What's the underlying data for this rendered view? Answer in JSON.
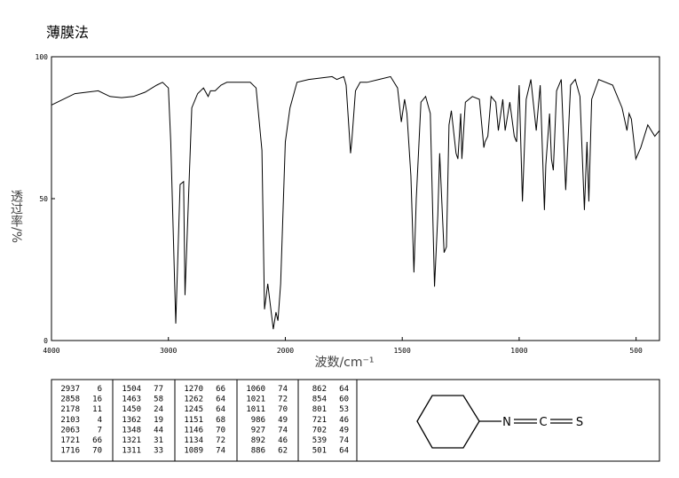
{
  "chart_data": {
    "type": "line",
    "title": "薄膜法",
    "x_label": "波数/cm⁻¹",
    "y_label": "透过率/%",
    "xlim": [
      4000,
      400
    ],
    "xticks": [
      4000,
      3000,
      2000,
      1500,
      1000,
      500
    ],
    "ylim": [
      0,
      100
    ],
    "yticks": [
      0,
      50,
      100
    ],
    "color": "#000000",
    "x": [
      4000,
      3800,
      3600,
      3500,
      3400,
      3300,
      3200,
      3100,
      3050,
      3000,
      2980,
      2937,
      2900,
      2870,
      2858,
      2800,
      2750,
      2700,
      2660,
      2640,
      2600,
      2550,
      2500,
      2400,
      2300,
      2250,
      2200,
      2178,
      2150,
      2103,
      2080,
      2063,
      2040,
      2000,
      1980,
      1950,
      1900,
      1850,
      1800,
      1780,
      1750,
      1740,
      1721,
      1716,
      1700,
      1680,
      1650,
      1600,
      1550,
      1520,
      1504,
      1490,
      1480,
      1463,
      1450,
      1440,
      1420,
      1400,
      1380,
      1362,
      1348,
      1340,
      1321,
      1311,
      1300,
      1290,
      1270,
      1262,
      1250,
      1245,
      1230,
      1200,
      1170,
      1151,
      1146,
      1134,
      1120,
      1100,
      1089,
      1070,
      1060,
      1040,
      1021,
      1011,
      1000,
      986,
      970,
      950,
      927,
      910,
      892,
      886,
      870,
      862,
      854,
      840,
      820,
      801,
      780,
      760,
      740,
      721,
      710,
      702,
      690,
      660,
      600,
      560,
      539,
      530,
      520,
      501,
      480,
      450,
      420,
      400
    ],
    "values": [
      83,
      87,
      88,
      86,
      85.6,
      86,
      87.5,
      90,
      91,
      89,
      70,
      6,
      55,
      56,
      16,
      82,
      87,
      89,
      86,
      88,
      88,
      90,
      91,
      91,
      91,
      89,
      67,
      11,
      20,
      4,
      10,
      7,
      20,
      70,
      82,
      91,
      92,
      92.5,
      93,
      92,
      93,
      90,
      66,
      70,
      88,
      91,
      91,
      92,
      93,
      89,
      77,
      85,
      80,
      58,
      24,
      50,
      84,
      86,
      80,
      19,
      44,
      66,
      31,
      33,
      76,
      81,
      66,
      64,
      80,
      64,
      84,
      86,
      85,
      68,
      70,
      72,
      86,
      84,
      74,
      85,
      74,
      84,
      72,
      70,
      90,
      49,
      85,
      92,
      74,
      90,
      46,
      62,
      80,
      64,
      60,
      88,
      92,
      53,
      90,
      92,
      86,
      46,
      70,
      49,
      85,
      92,
      90,
      82,
      74,
      80,
      78,
      64,
      68,
      76,
      72,
      74
    ]
  },
  "peak_table": {
    "columns": [
      {
        "wavenumbers": [
          2937,
          2858,
          2178,
          2103,
          2063,
          1721,
          1716
        ],
        "transmittance": [
          6,
          16,
          11,
          4,
          7,
          66,
          70
        ]
      },
      {
        "wavenumbers": [
          1504,
          1463,
          1450,
          1362,
          1348,
          1321,
          1311
        ],
        "transmittance": [
          77,
          58,
          24,
          19,
          44,
          31,
          33
        ]
      },
      {
        "wavenumbers": [
          1270,
          1262,
          1245,
          1151,
          1146,
          1134,
          1089
        ],
        "transmittance": [
          66,
          64,
          64,
          68,
          70,
          72,
          74
        ]
      },
      {
        "wavenumbers": [
          1060,
          1021,
          1011,
          986,
          927,
          892,
          886
        ],
        "transmittance": [
          74,
          72,
          70,
          49,
          74,
          46,
          62
        ]
      },
      {
        "wavenumbers": [
          862,
          854,
          801,
          721,
          702,
          539,
          501
        ],
        "transmittance": [
          64,
          60,
          53,
          46,
          49,
          74,
          64
        ]
      }
    ]
  },
  "structure": {
    "atoms": [
      "N",
      "C",
      "S"
    ]
  }
}
